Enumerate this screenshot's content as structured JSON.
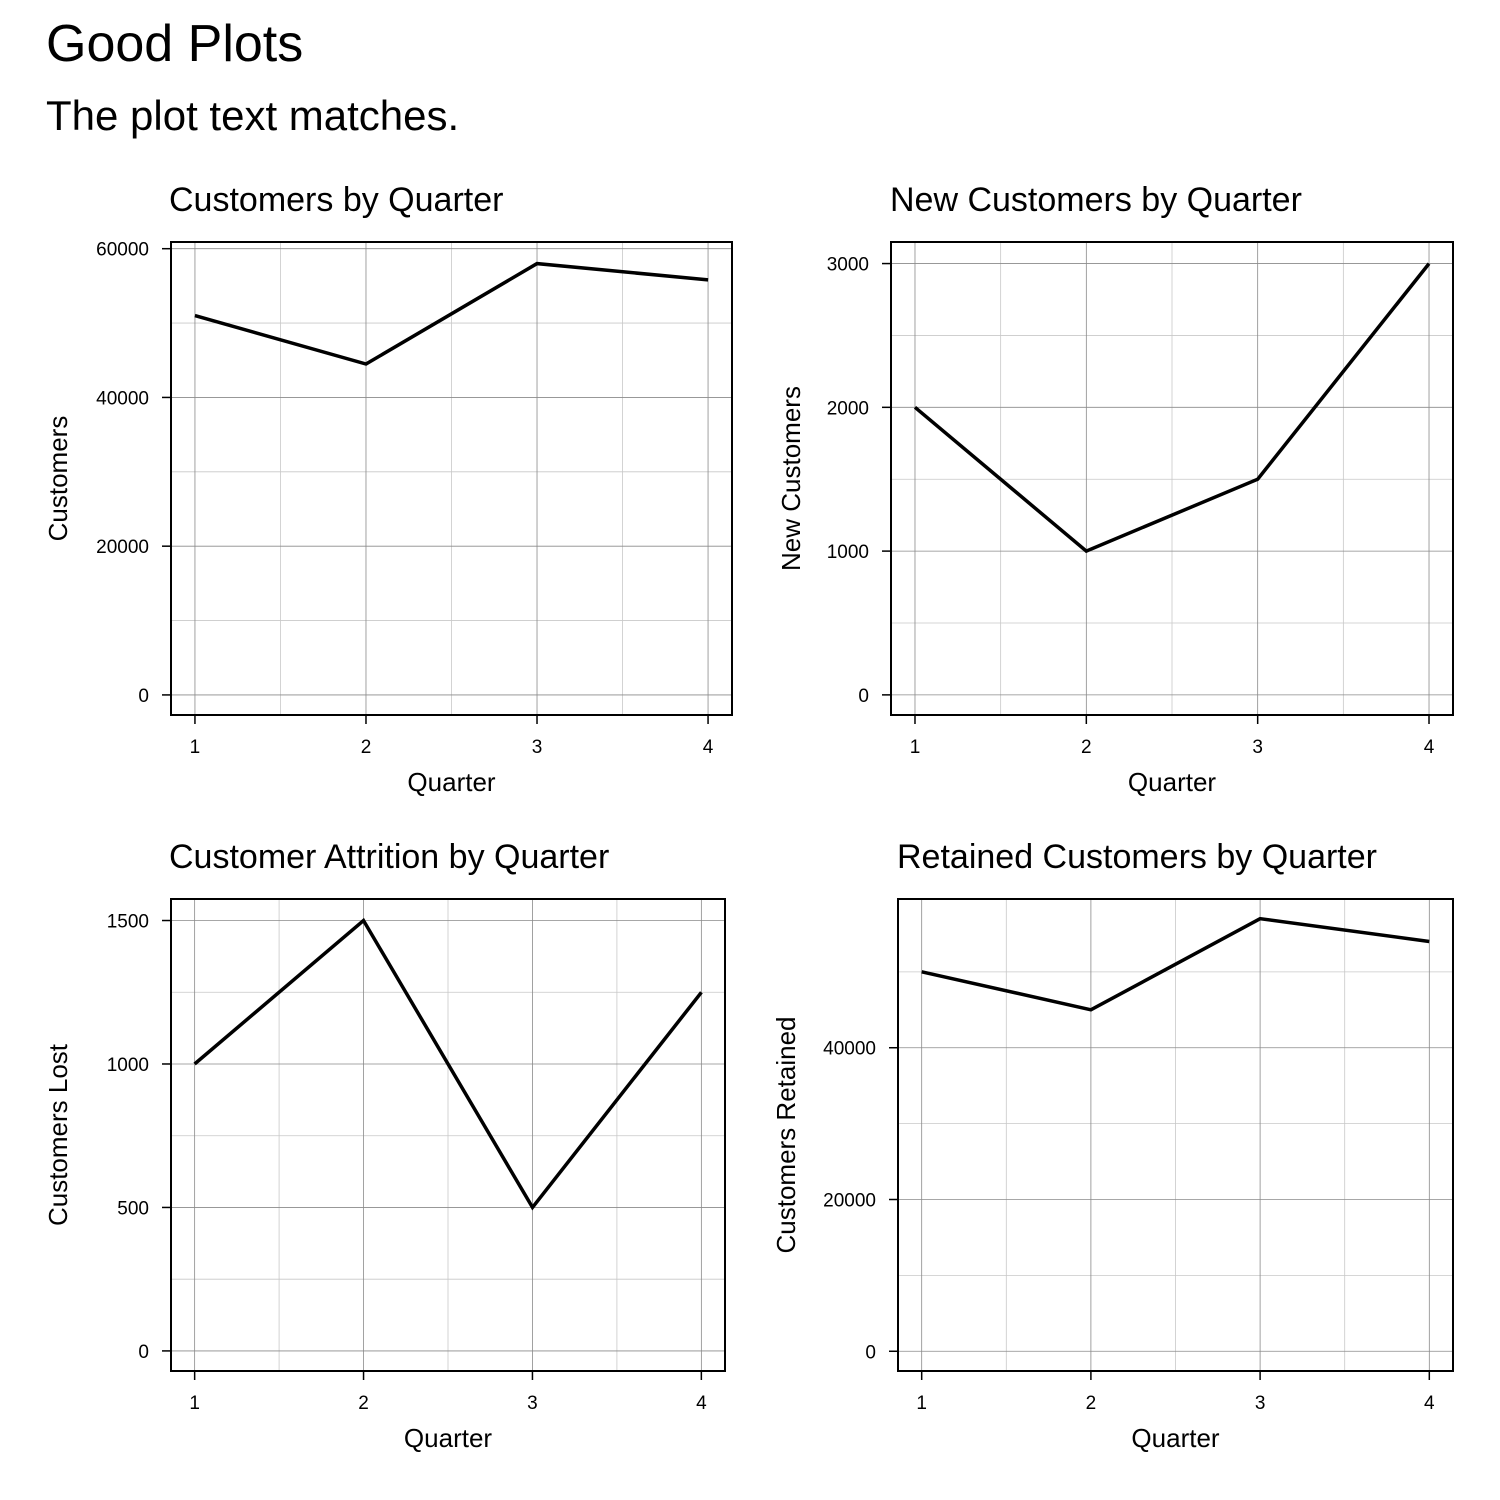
{
  "header": {
    "title": "Good Plots",
    "subtitle": "The plot text matches."
  },
  "chart_data": [
    {
      "type": "line",
      "title": "Customers by Quarter",
      "xlabel": "Quarter",
      "ylabel": "Customers",
      "x": [
        1,
        2,
        3,
        4
      ],
      "series": [
        {
          "values": [
            51000,
            44500,
            58000,
            55800
          ]
        }
      ],
      "xlim": [
        0.86,
        4.14
      ],
      "ylim": [
        -2700,
        60900
      ],
      "xticks": [
        1,
        2,
        3,
        4
      ],
      "yticks": [
        0,
        20000,
        40000,
        60000
      ],
      "ytick_labels": [
        "0",
        "20000",
        "40000",
        "60000"
      ],
      "minor_yticks": [
        10000,
        30000,
        50000
      ],
      "grid": true,
      "line_color": "#000000"
    },
    {
      "type": "line",
      "title": "New Customers by Quarter",
      "xlabel": "Quarter",
      "ylabel": "New Customers",
      "x": [
        1,
        2,
        3,
        4
      ],
      "series": [
        {
          "values": [
            2000,
            1000,
            1500,
            3000
          ]
        }
      ],
      "xlim": [
        0.86,
        4.14
      ],
      "ylim": [
        -140,
        3150
      ],
      "xticks": [
        1,
        2,
        3,
        4
      ],
      "yticks": [
        0,
        1000,
        2000,
        3000
      ],
      "ytick_labels": [
        "0",
        "1000",
        "2000",
        "3000"
      ],
      "minor_yticks": [
        500,
        1500,
        2500
      ],
      "grid": true,
      "line_color": "#000000"
    },
    {
      "type": "line",
      "title": "Customer Attrition by Quarter",
      "xlabel": "Quarter",
      "ylabel": "Customers Lost",
      "x": [
        1,
        2,
        3,
        4
      ],
      "series": [
        {
          "values": [
            1000,
            1500,
            500,
            1250
          ]
        }
      ],
      "xlim": [
        0.86,
        4.14
      ],
      "ylim": [
        -70,
        1575
      ],
      "xticks": [
        1,
        2,
        3,
        4
      ],
      "yticks": [
        0,
        500,
        1000,
        1500
      ],
      "ytick_labels": [
        "0",
        "500",
        "1000",
        "1500"
      ],
      "minor_yticks": [
        250,
        750,
        1250
      ],
      "grid": true,
      "line_color": "#000000"
    },
    {
      "type": "line",
      "title": "Retained Customers by Quarter",
      "xlabel": "Quarter",
      "ylabel": "Customers Retained",
      "x": [
        1,
        2,
        3,
        4
      ],
      "series": [
        {
          "values": [
            50000,
            45000,
            57000,
            54000
          ]
        }
      ],
      "xlim": [
        0.86,
        4.14
      ],
      "ylim": [
        -2600,
        59600
      ],
      "xticks": [
        1,
        2,
        3,
        4
      ],
      "yticks": [
        0,
        20000,
        40000
      ],
      "ytick_labels": [
        "0",
        "20000",
        "40000"
      ],
      "minor_yticks": [
        10000,
        30000,
        50000
      ],
      "grid": true,
      "line_color": "#000000"
    }
  ]
}
